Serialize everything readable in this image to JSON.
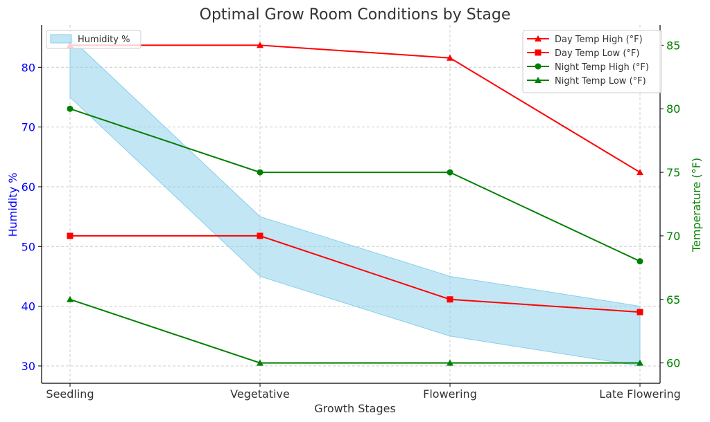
{
  "chart_data": {
    "type": "line",
    "title": "Optimal Grow Room Conditions by Stage",
    "xlabel": "Growth Stages",
    "ylabel_left": "Humidity %",
    "ylabel_right": "Temperature (°F)",
    "categories": [
      "Seedling",
      "Vegetative",
      "Flowering",
      "Late Flowering"
    ],
    "humidity_band": {
      "name": "Humidity %",
      "low": [
        75,
        45,
        35,
        30
      ],
      "high": [
        85,
        55,
        45,
        40
      ],
      "color": "#87ceeb"
    },
    "series": [
      {
        "name": "Day Temp High (°F)",
        "axis": "right",
        "values": [
          85,
          85,
          84,
          75
        ],
        "color": "#ff0000",
        "marker": "triangle"
      },
      {
        "name": "Day Temp Low (°F)",
        "axis": "right",
        "values": [
          70,
          70,
          65,
          64
        ],
        "color": "#ff0000",
        "marker": "square"
      },
      {
        "name": "Night Temp High (°F)",
        "axis": "right",
        "values": [
          80,
          75,
          75,
          68
        ],
        "color": "#008000",
        "marker": "circle"
      },
      {
        "name": "Night Temp Low (°F)",
        "axis": "right",
        "values": [
          65,
          60,
          60,
          60
        ],
        "color": "#008000",
        "marker": "triangle"
      }
    ],
    "ylim_left": [
      27.1,
      87.1
    ],
    "ylim_right": [
      58.4,
      86.6
    ],
    "yticks_left": [
      "30",
      "40",
      "50",
      "60",
      "70",
      "80"
    ],
    "yticks_right": [
      "60",
      "65",
      "70",
      "75",
      "80",
      "85"
    ],
    "grid": true,
    "legend_left_position": "upper-left",
    "legend_right_position": "upper-right",
    "colors": {
      "left_axis": "#0000ff",
      "right_axis": "#008000",
      "title": "#333333",
      "grid": "#cccccc"
    }
  }
}
